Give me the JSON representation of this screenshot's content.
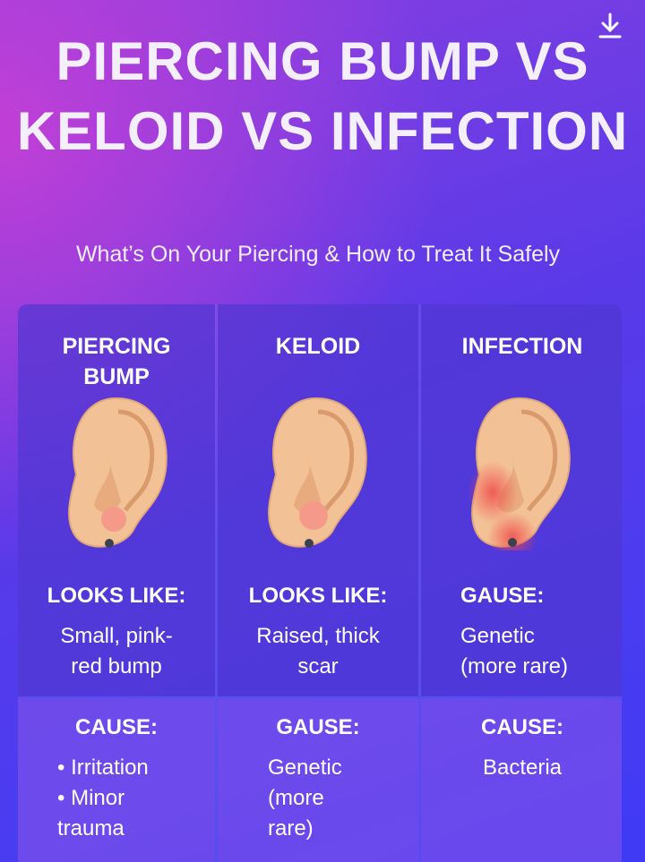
{
  "title": "PIERCING BUMP VS KELOID VS INFECTION",
  "subtitle": "What’s On Your Piercing & How to Treat It Safely",
  "download_icon": "download-icon",
  "colors": {
    "skin": "#f3c196",
    "bump": "#f59a8a",
    "infection": "#ef4a4a",
    "hole": "#3b4150"
  },
  "columns": [
    {
      "heading": "PIERCING BUMP",
      "top_label": "LOOKS LIKE:",
      "top_text": "Small, pink-red bump",
      "bottom_label": "CAUSE:",
      "bottom_items": [
        "Irritation",
        "Minor trauma"
      ]
    },
    {
      "heading": "KELOID",
      "top_label": "LOOKS LIKE:",
      "top_text": "Raised, thick scar",
      "bottom_label": "GAUSE:",
      "bottom_text": "Genetic (more rare)"
    },
    {
      "heading": "INFECTION",
      "top_label": "GAUSE:",
      "top_text": "Genetic (more rare)",
      "bottom_label": "CAUSE:",
      "bottom_text": "Bacteria"
    }
  ]
}
